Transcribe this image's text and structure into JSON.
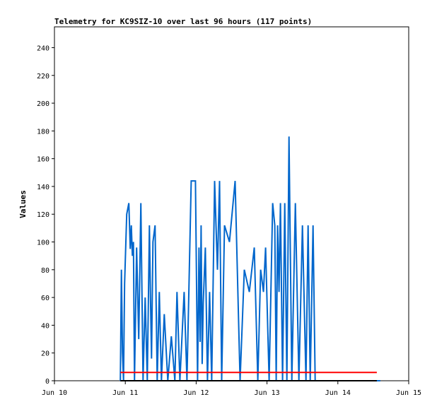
{
  "chart_data": {
    "type": "line",
    "title": "Telemetry for KC9SIZ-10 over last 96 hours (117 points)",
    "ylabel": "Values",
    "xlabel": "",
    "ylim": [
      0,
      255
    ],
    "yticks": [
      0,
      20,
      40,
      60,
      80,
      100,
      120,
      140,
      160,
      180,
      200,
      220,
      240
    ],
    "xlim_days": [
      "Jun 10",
      "Jun 15"
    ],
    "xticks": [
      "Jun 10",
      "Jun 11",
      "Jun 12",
      "Jun 13",
      "Jun 14",
      "Jun 15"
    ],
    "grid": false,
    "series": [
      {
        "color": "#0066cc",
        "x": [
          10.93,
          10.945,
          10.96,
          10.975,
          10.99,
          11.02,
          11.05,
          11.07,
          11.085,
          11.1,
          11.115,
          11.13,
          11.16,
          11.19,
          11.22,
          11.25,
          11.28,
          11.31,
          11.34,
          11.355,
          11.37,
          11.39,
          11.42,
          11.45,
          11.48,
          11.51,
          11.55,
          11.6,
          11.65,
          11.7,
          11.73,
          11.77,
          11.83,
          11.87,
          11.93,
          11.99,
          12.02,
          12.04,
          12.055,
          12.07,
          12.085,
          12.1,
          12.13,
          12.16,
          12.19,
          12.22,
          12.26,
          12.3,
          12.33,
          12.36,
          12.4,
          12.47,
          12.55,
          12.62,
          12.68,
          12.75,
          12.82,
          12.87,
          12.91,
          12.95,
          12.98,
          13.03,
          13.08,
          13.11,
          13.13,
          13.15,
          13.17,
          13.19,
          13.22,
          13.25,
          13.28,
          13.31,
          13.35,
          13.4,
          13.45,
          13.5,
          13.55,
          13.58,
          13.61,
          13.63,
          13.65,
          13.68,
          13.71,
          13.74,
          13.78,
          13.82,
          13.85,
          13.87,
          13.89,
          13.92,
          13.95,
          13.97,
          13.99,
          14.01,
          14.03,
          14.06,
          14.1,
          14.13,
          14.155,
          14.17,
          14.185,
          14.2,
          14.22,
          14.25,
          14.28,
          14.31,
          14.34,
          14.37,
          14.4,
          14.43,
          14.46,
          14.49,
          14.52,
          14.54,
          14.55,
          14.57,
          14.6
        ],
        "values": [
          0,
          80,
          20,
          0,
          70,
          120,
          128,
          95,
          112,
          90,
          100,
          0,
          96,
          30,
          128,
          0,
          60,
          0,
          112,
          60,
          16,
          100,
          112,
          0,
          64,
          0,
          48,
          0,
          32,
          0,
          64,
          0,
          64,
          0,
          144,
          144,
          0,
          96,
          28,
          112,
          12,
          56,
          96,
          0,
          64,
          0,
          144,
          80,
          144,
          0,
          112,
          100,
          144,
          0,
          80,
          64,
          96,
          0,
          80,
          64,
          96,
          0,
          128,
          112,
          0,
          112,
          64,
          128,
          0,
          128,
          0,
          176,
          0,
          128,
          0,
          112,
          0,
          112,
          0,
          56,
          112,
          0,
          0,
          0,
          0,
          0,
          0,
          0,
          0,
          0,
          0,
          0,
          0,
          0,
          0,
          0,
          0,
          0,
          0,
          0,
          0,
          0,
          0,
          0,
          0,
          0,
          0,
          0,
          0,
          0,
          0,
          0,
          0,
          0,
          0,
          0,
          0
        ]
      },
      {
        "color": "#ff0000",
        "x": [
          10.93,
          14.55
        ],
        "values": [
          6,
          6
        ]
      },
      {
        "color": "#000000",
        "x": [
          10.93,
          14.55
        ],
        "values": [
          0,
          0
        ]
      }
    ]
  }
}
